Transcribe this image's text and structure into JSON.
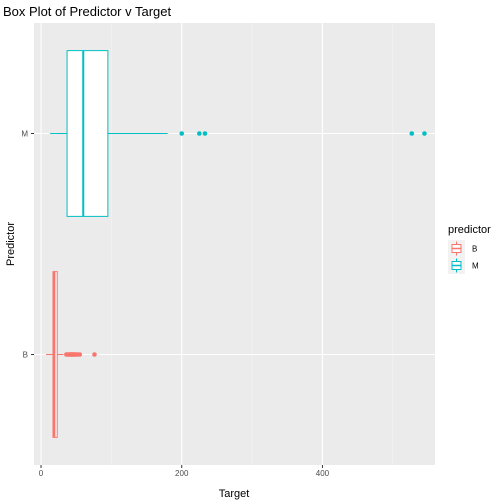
{
  "chart_data": {
    "type": "boxplot",
    "orientation": "horizontal",
    "title": "Box Plot of Predictor v Target",
    "xlabel": "Target",
    "ylabel": "Predictor",
    "xlim": [
      -10,
      560
    ],
    "x_ticks": [
      0,
      200,
      400
    ],
    "x_tick_labels": [
      "0",
      "200",
      "400"
    ],
    "categories": [
      "B",
      "M"
    ],
    "grid": true,
    "legend": {
      "title": "predictor",
      "position": "right",
      "entries": [
        "B",
        "M"
      ]
    },
    "series": [
      {
        "name": "B",
        "color": "#f8766d",
        "whisker_low": 7,
        "q1": 17,
        "median": 19,
        "q3": 23,
        "whisker_high": 32,
        "outliers": [
          36,
          38,
          40,
          41,
          42,
          43,
          44,
          45,
          46,
          47,
          48,
          50,
          52,
          55,
          76
        ]
      },
      {
        "name": "M",
        "color": "#00bfc4",
        "whisker_low": 13,
        "q1": 37,
        "median": 60,
        "q3": 95,
        "whisker_high": 180,
        "outliers": [
          200,
          225,
          233,
          527,
          545
        ]
      }
    ]
  }
}
